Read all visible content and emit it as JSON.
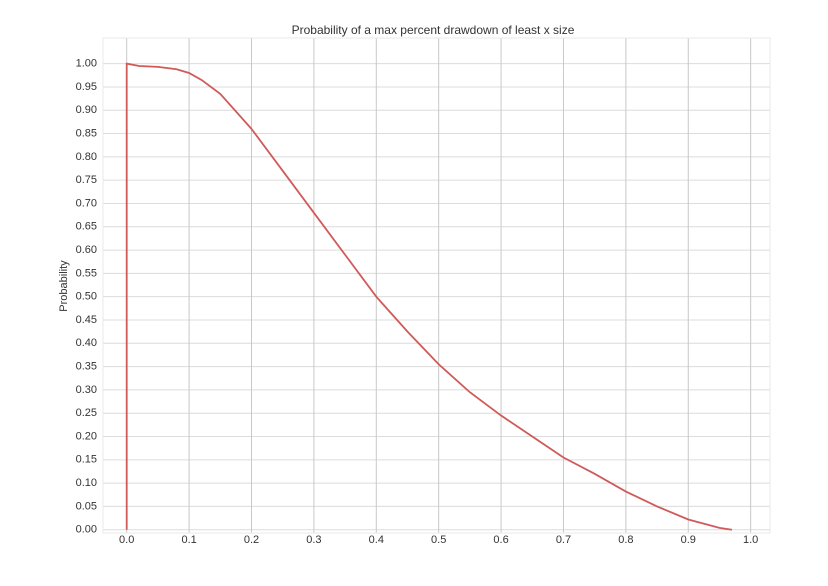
{
  "chart_data": {
    "type": "line",
    "title": "Probability of a max percent drawdown of least x size",
    "y_label": "Probability",
    "series": [
      {
        "name": null,
        "color": "#d05a5a",
        "x": [
          0,
          0,
          0.02,
          0.05,
          0.08,
          0.1,
          0.12,
          0.15,
          0.2,
          0.25,
          0.3,
          0.35,
          0.4,
          0.45,
          0.5,
          0.55,
          0.6,
          0.65,
          0.7,
          0.75,
          0.8,
          0.85,
          0.9,
          0.95,
          0.97
        ],
        "values": [
          0,
          1.0,
          0.995,
          0.993,
          0.988,
          0.98,
          0.965,
          0.935,
          0.86,
          0.77,
          0.68,
          0.59,
          0.5,
          0.425,
          0.355,
          0.295,
          0.245,
          0.2,
          0.155,
          0.12,
          0.082,
          0.05,
          0.022,
          0.004,
          0.0
        ]
      }
    ],
    "xlim": [
      -0.038,
      1.031
    ],
    "ylim": [
      -0.007,
      1.055
    ],
    "xticks": [
      {
        "value": 0,
        "label": "0.0"
      },
      0.1,
      0.2,
      0.3,
      0.4,
      0.5,
      0.6,
      0.7,
      0.8,
      0.9,
      {
        "value": 1,
        "label": "1.0"
      }
    ],
    "yticks": [
      {
        "value": 0,
        "label": "0.00"
      },
      0.05,
      {
        "value": 0.1,
        "label": "0.10"
      },
      0.15,
      {
        "value": 0.2,
        "label": "0.20"
      },
      0.25,
      {
        "value": 0.3,
        "label": "0.30"
      },
      0.35,
      {
        "value": 0.4,
        "label": "0.40"
      },
      0.45,
      {
        "value": 0.5,
        "label": "0.50"
      },
      0.55,
      {
        "value": 0.6,
        "label": "0.60"
      },
      0.65,
      {
        "value": 0.7,
        "label": "0.70"
      },
      0.75,
      {
        "value": 0.8,
        "label": "0.80"
      },
      0.85,
      {
        "value": 0.9,
        "label": "0.90"
      },
      0.95,
      {
        "value": 1,
        "label": "1.00"
      }
    ],
    "grid": true
  }
}
